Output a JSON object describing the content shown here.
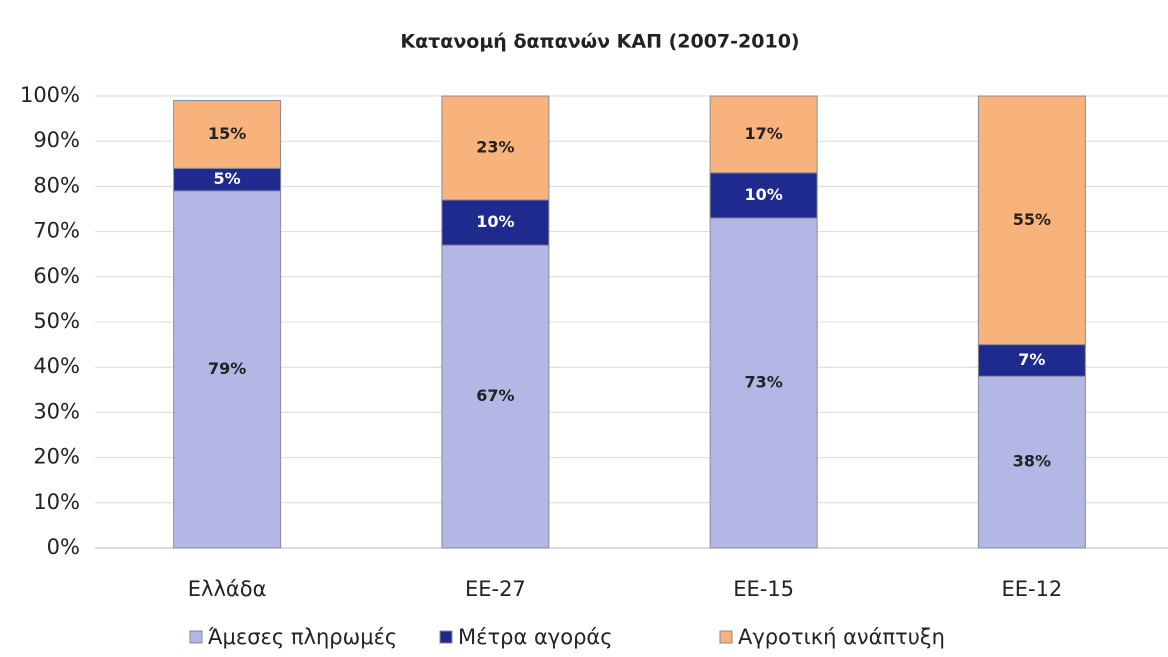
{
  "chart_data": {
    "type": "stacked_bar",
    "title": "Κατανομή δαπανών ΚΑΠ (2007-2010)",
    "categories": [
      "Ελλάδα",
      "ΕΕ-27",
      "ΕΕ-15",
      "ΕΕ-12"
    ],
    "series": [
      {
        "name": "Άμεσες πληρωμές",
        "color": "#b3b7e6",
        "values": [
          79,
          67,
          73,
          38
        ],
        "value_labels": [
          "79%",
          "67%",
          "73%",
          "38%"
        ]
      },
      {
        "name": "Μέτρα αγοράς",
        "color": "#1f2a8e",
        "values": [
          5,
          10,
          10,
          7
        ],
        "value_labels": [
          "5%",
          "10%",
          "10%",
          "7%"
        ]
      },
      {
        "name": "Αγροτική ανάπτυξη",
        "color": "#f8b37c",
        "values": [
          15,
          23,
          17,
          55
        ],
        "value_labels": [
          "15%",
          "23%",
          "17%",
          "55%"
        ]
      }
    ],
    "ylim": [
      0,
      100
    ],
    "yticks": [
      {
        "value": 0,
        "label": "0%"
      },
      {
        "value": 10,
        "label": "10%"
      },
      {
        "value": 20,
        "label": "20%"
      },
      {
        "value": 30,
        "label": "30%"
      },
      {
        "value": 40,
        "label": "40%"
      },
      {
        "value": 50,
        "label": "50%"
      },
      {
        "value": 60,
        "label": "60%"
      },
      {
        "value": 70,
        "label": "70%"
      },
      {
        "value": 80,
        "label": "80%"
      },
      {
        "value": 90,
        "label": "90%"
      },
      {
        "value": 100,
        "label": "100%"
      }
    ],
    "grid": true
  }
}
